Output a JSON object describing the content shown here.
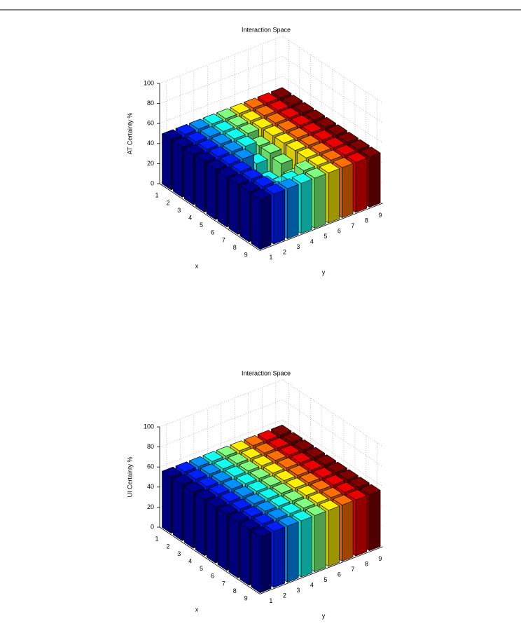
{
  "chart_data": [
    {
      "type": "bar3d",
      "title": "Interaction Space",
      "zlabel": "AT Certainty %",
      "xlabel": "x",
      "ylabel": "y",
      "xticks": [
        1,
        2,
        3,
        4,
        5,
        6,
        7,
        8,
        9
      ],
      "yticks": [
        1,
        2,
        3,
        4,
        5,
        6,
        7,
        8,
        9
      ],
      "zlim": [
        0,
        100
      ],
      "zticks": [
        0,
        20,
        40,
        60,
        80,
        100
      ],
      "grid": true,
      "colors": [
        "#00008f",
        "#0020ff",
        "#0090ff",
        "#10ffef",
        "#80ff80",
        "#ffef00",
        "#ff7000",
        "#ef0000",
        "#800000"
      ],
      "values": [
        [
          50,
          50,
          50,
          50,
          50,
          50,
          50,
          50,
          50
        ],
        [
          50,
          50,
          50,
          50,
          50,
          50,
          50,
          50,
          50
        ],
        [
          50,
          50,
          50,
          50,
          50,
          50,
          50,
          50,
          50
        ],
        [
          50,
          50,
          50,
          50,
          45,
          50,
          50,
          50,
          50
        ],
        [
          50,
          50,
          50,
          40,
          45,
          50,
          50,
          50,
          50
        ],
        [
          50,
          50,
          35,
          30,
          42,
          50,
          50,
          50,
          50
        ],
        [
          50,
          50,
          38,
          32,
          35,
          50,
          50,
          50,
          50
        ],
        [
          50,
          50,
          40,
          45,
          50,
          50,
          50,
          50,
          50
        ],
        [
          50,
          50,
          50,
          50,
          50,
          50,
          50,
          50,
          50
        ]
      ]
    },
    {
      "type": "bar3d",
      "title": "Interaction Space",
      "zlabel": "UI Certainty %",
      "xlabel": "x",
      "ylabel": "y",
      "xticks": [
        1,
        2,
        3,
        4,
        5,
        6,
        7,
        8,
        9
      ],
      "yticks": [
        1,
        2,
        3,
        4,
        5,
        6,
        7,
        8,
        9
      ],
      "zlim": [
        0,
        100
      ],
      "zticks": [
        0,
        20,
        40,
        60,
        80,
        100
      ],
      "grid": true,
      "colors": [
        "#00008f",
        "#0020ff",
        "#0090ff",
        "#10ffef",
        "#80ff80",
        "#ffef00",
        "#ff7000",
        "#ef0000",
        "#800000"
      ],
      "values": [
        [
          56,
          56,
          56,
          56,
          56,
          56,
          56,
          56,
          56
        ],
        [
          56,
          56,
          56,
          56,
          56,
          56,
          56,
          56,
          56
        ],
        [
          56,
          56,
          56,
          56,
          56,
          56,
          56,
          56,
          56
        ],
        [
          56,
          56,
          56,
          56,
          56,
          56,
          56,
          56,
          56
        ],
        [
          56,
          56,
          56,
          56,
          56,
          56,
          56,
          56,
          56
        ],
        [
          56,
          56,
          56,
          56,
          56,
          56,
          56,
          56,
          56
        ],
        [
          56,
          56,
          56,
          56,
          56,
          56,
          56,
          56,
          56
        ],
        [
          56,
          56,
          56,
          56,
          56,
          56,
          56,
          56,
          56
        ],
        [
          56,
          56,
          56,
          56,
          56,
          56,
          56,
          56,
          56
        ]
      ]
    }
  ]
}
